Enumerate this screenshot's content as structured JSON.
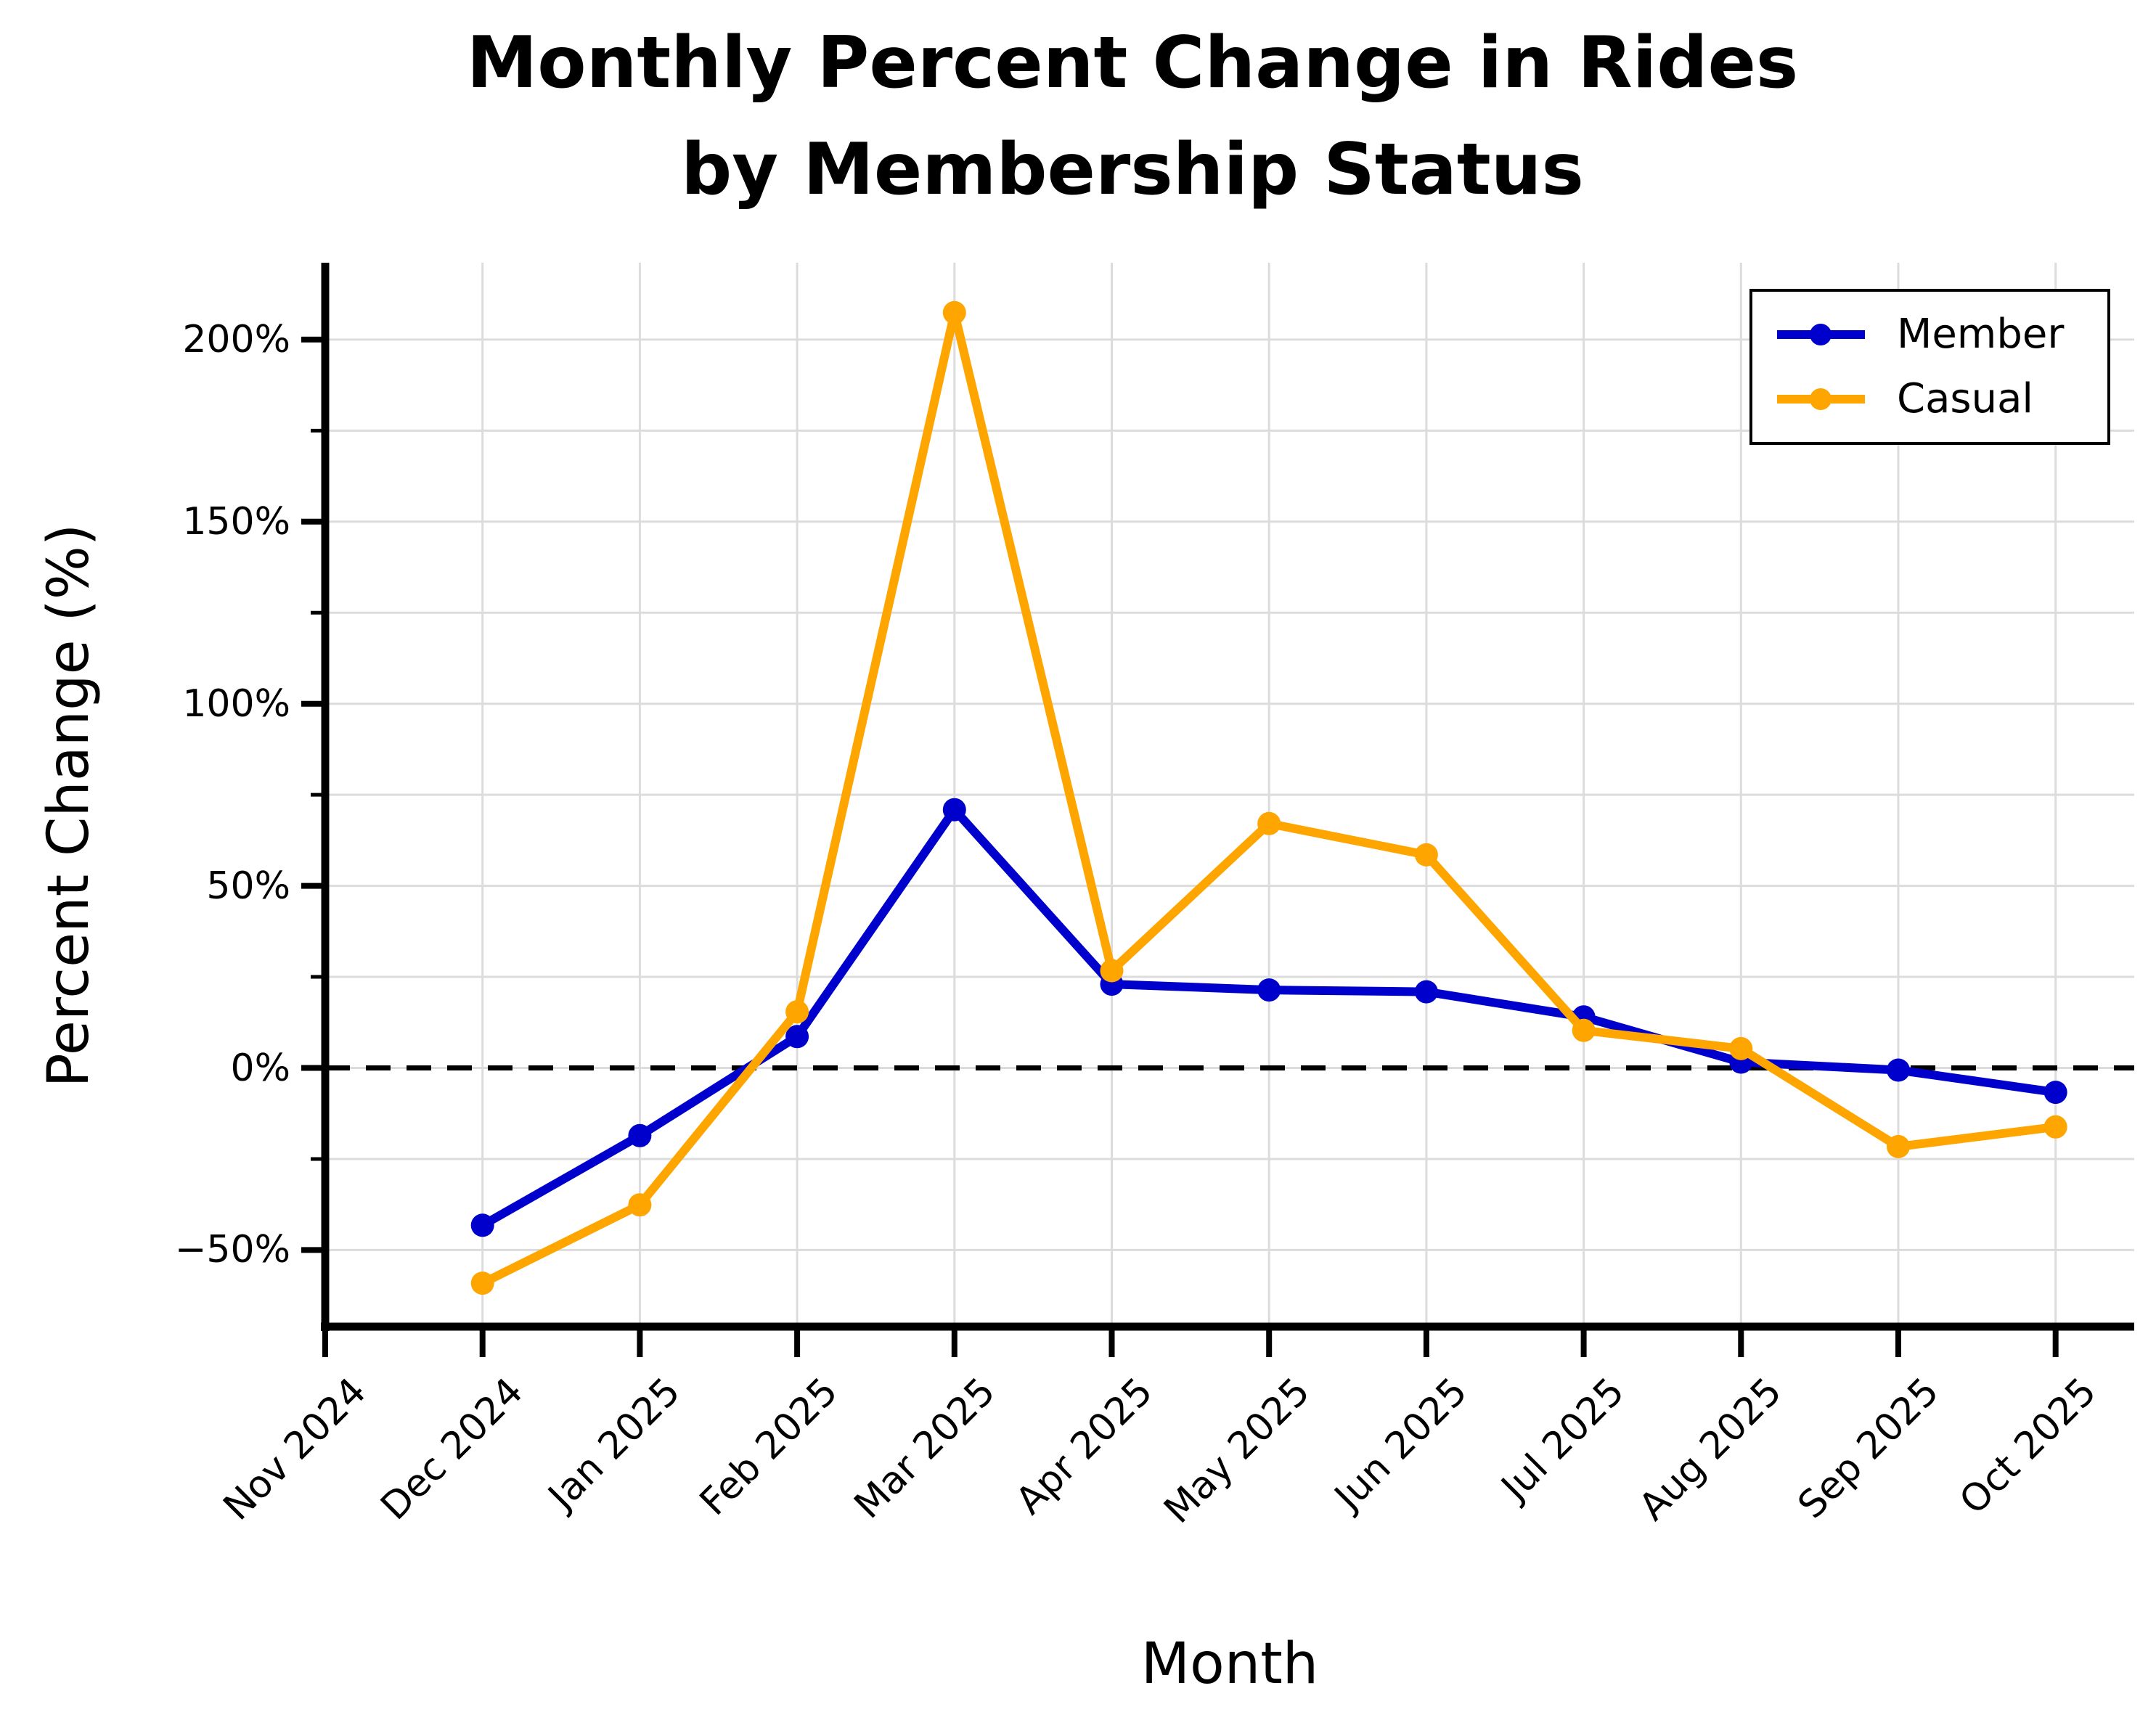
{
  "title": {
    "line1": "Monthly Percent Change in Rides",
    "line2": "by Membership Status"
  },
  "axes": {
    "xlabel": "Month",
    "ylabel": "Percent Change (%)",
    "y_tick_labels": [
      "200%",
      "150%",
      "100%",
      "50%",
      "0%",
      "−50%"
    ],
    "x_tick_labels": [
      "Nov 2024",
      "Dec 2024",
      "Jan 2025",
      "Feb 2025",
      "Mar 2025",
      "Apr 2025",
      "May 2025",
      "Jun 2025",
      "Jul 2025",
      "Aug 2025",
      "Sep 2025",
      "Oct 2025"
    ]
  },
  "legend": {
    "items": [
      {
        "label": "Member",
        "color": "#0000CD"
      },
      {
        "label": "Casual",
        "color": "#FFA500"
      }
    ]
  },
  "colors": {
    "member": "#0000CD",
    "casual": "#FFA500",
    "gridline": "#DCDCDC",
    "zero_line": "#000000",
    "spine": "#000000"
  },
  "chart_data": {
    "type": "line",
    "title": "Monthly Percent Change in Rides by Membership Status",
    "xlabel": "Month",
    "ylabel": "Percent Change (%)",
    "categories": [
      "Nov 2024",
      "Dec 2024",
      "Jan 2025",
      "Feb 2025",
      "Mar 2025",
      "Apr 2025",
      "May 2025",
      "Jun 2025",
      "Jul 2025",
      "Aug 2025",
      "Sep 2025",
      "Oct 2025"
    ],
    "series": [
      {
        "name": "Member",
        "color": "#0000CD",
        "values": [
          null,
          -43.2,
          -18.6,
          8.6,
          70.9,
          23.0,
          21.4,
          20.9,
          14.0,
          1.6,
          -0.6,
          -6.7
        ]
      },
      {
        "name": "Casual",
        "color": "#FFA500",
        "values": [
          null,
          -59.1,
          -37.6,
          15.4,
          207.4,
          26.7,
          67.1,
          58.5,
          10.3,
          5.3,
          -21.6,
          -16.2
        ]
      }
    ],
    "ylim": [
      -71,
      221
    ],
    "y_major_ticks": [
      200,
      150,
      100,
      50,
      0,
      -50
    ],
    "y_minor_ticks": [
      175,
      125,
      75,
      25,
      -25
    ],
    "grid": true,
    "grid_interval": 25,
    "zero_line_dashed": true,
    "legend_position": "upper right",
    "x_tick_rotation": -45
  }
}
